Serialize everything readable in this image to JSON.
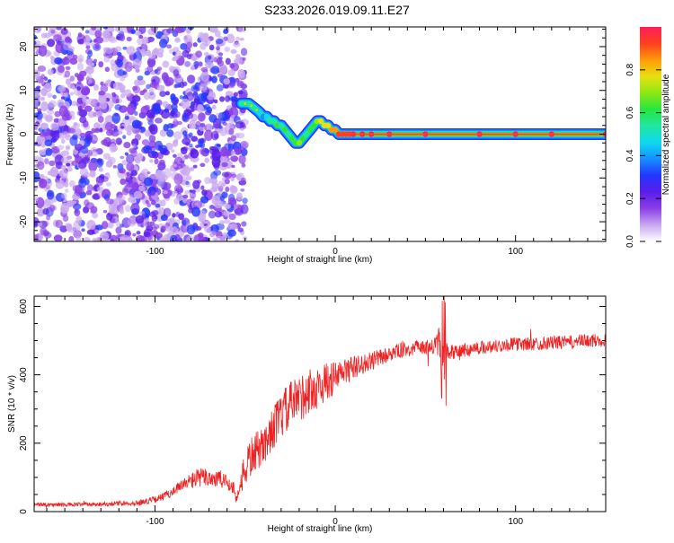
{
  "title": "S233.2026.019.09.11.E27",
  "chart_data": [
    {
      "type": "heatmap",
      "title": "S233.2026.019.09.11.E27",
      "xlabel": "Height of straight line (km)",
      "ylabel": "Frequency (Hz)",
      "xlim": [
        -167,
        150
      ],
      "ylim": [
        -24.5,
        24.5
      ],
      "xticks": [
        -100,
        0,
        100
      ],
      "yticks": [
        -20,
        -10,
        0,
        10,
        20
      ],
      "colorbar": {
        "label": "Normalized spectral amplitude",
        "range": [
          0,
          1
        ],
        "ticks": [
          0.0,
          0.2,
          0.4,
          0.6,
          0.8
        ],
        "colors": [
          "#ffffff",
          "#c9a8f0",
          "#8a3ee6",
          "#5a1ee8",
          "#2236ff",
          "#1590ff",
          "#10d8f0",
          "#1fe6a0",
          "#27e640",
          "#8ce812",
          "#e8e010",
          "#ff9a08",
          "#ff4020",
          "#ff1e5a"
        ]
      },
      "noise_region_km": [
        -167,
        -50
      ],
      "trace": {
        "x": [
          -52,
          -48,
          -45,
          -42,
          -40,
          -38,
          -36,
          -34,
          -32,
          -30,
          -28,
          -26,
          -24,
          -22,
          -20,
          -18,
          -16,
          -14,
          -12,
          -10,
          -8,
          -6,
          -4,
          -2,
          0,
          2,
          4,
          6,
          8,
          10,
          15,
          20,
          30,
          50,
          80,
          100,
          120,
          150
        ],
        "y": [
          7,
          7,
          6,
          5,
          4,
          4,
          3,
          3,
          2,
          2,
          1,
          0,
          -1,
          -2,
          -2,
          -1,
          0,
          1,
          2,
          3,
          3,
          2,
          2,
          1,
          1,
          0,
          0,
          0,
          0,
          0,
          0,
          0,
          0,
          0,
          0,
          0,
          0,
          0
        ],
        "strength": [
          0.5,
          0.55,
          0.5,
          0.45,
          0.4,
          0.45,
          0.55,
          0.5,
          0.6,
          0.55,
          0.6,
          0.55,
          0.65,
          0.6,
          0.7,
          0.6,
          0.55,
          0.6,
          0.65,
          0.7,
          0.75,
          0.8,
          0.75,
          0.85,
          0.85,
          0.9,
          0.92,
          0.95,
          0.95,
          0.97,
          0.97,
          0.97,
          0.97,
          0.97,
          0.97,
          0.97,
          0.97,
          0.97
        ]
      }
    },
    {
      "type": "line",
      "xlabel": "Height of straight line (km)",
      "ylabel": "SNR (10 * v/v)",
      "xlim": [
        -167,
        150
      ],
      "ylim": [
        0,
        630
      ],
      "xticks": [
        -100,
        0,
        100
      ],
      "yticks": [
        0,
        200,
        400,
        600
      ],
      "series": [
        {
          "name": "SNR",
          "color": "#ee2222",
          "x": [
            -167,
            -150,
            -130,
            -110,
            -100,
            -95,
            -90,
            -85,
            -80,
            -75,
            -70,
            -65,
            -60,
            -56,
            -55,
            -52,
            -50,
            -48,
            -45,
            -40,
            -35,
            -30,
            -25,
            -20,
            -15,
            -10,
            -5,
            0,
            5,
            10,
            15,
            20,
            25,
            30,
            35,
            40,
            45,
            50,
            55,
            58,
            60,
            62,
            65,
            70,
            80,
            90,
            100,
            110,
            120,
            130,
            140,
            150
          ],
          "values": [
            20,
            20,
            22,
            25,
            35,
            45,
            60,
            75,
            90,
            100,
            100,
            95,
            85,
            70,
            30,
            95,
            120,
            150,
            170,
            190,
            240,
            280,
            310,
            330,
            350,
            360,
            380,
            390,
            410,
            420,
            430,
            440,
            450,
            460,
            470,
            475,
            480,
            480,
            480,
            500,
            490,
            480,
            470,
            470,
            480,
            485,
            490,
            490,
            495,
            495,
            500,
            500
          ],
          "noise": [
            6,
            6,
            6,
            8,
            10,
            12,
            15,
            20,
            25,
            28,
            30,
            30,
            25,
            20,
            10,
            40,
            50,
            60,
            60,
            55,
            60,
            70,
            70,
            70,
            70,
            60,
            55,
            50,
            40,
            35,
            30,
            28,
            25,
            22,
            22,
            22,
            20,
            22,
            28,
            50,
            60,
            40,
            25,
            22,
            20,
            20,
            20,
            20,
            20,
            20,
            20,
            20
          ]
        }
      ]
    }
  ]
}
